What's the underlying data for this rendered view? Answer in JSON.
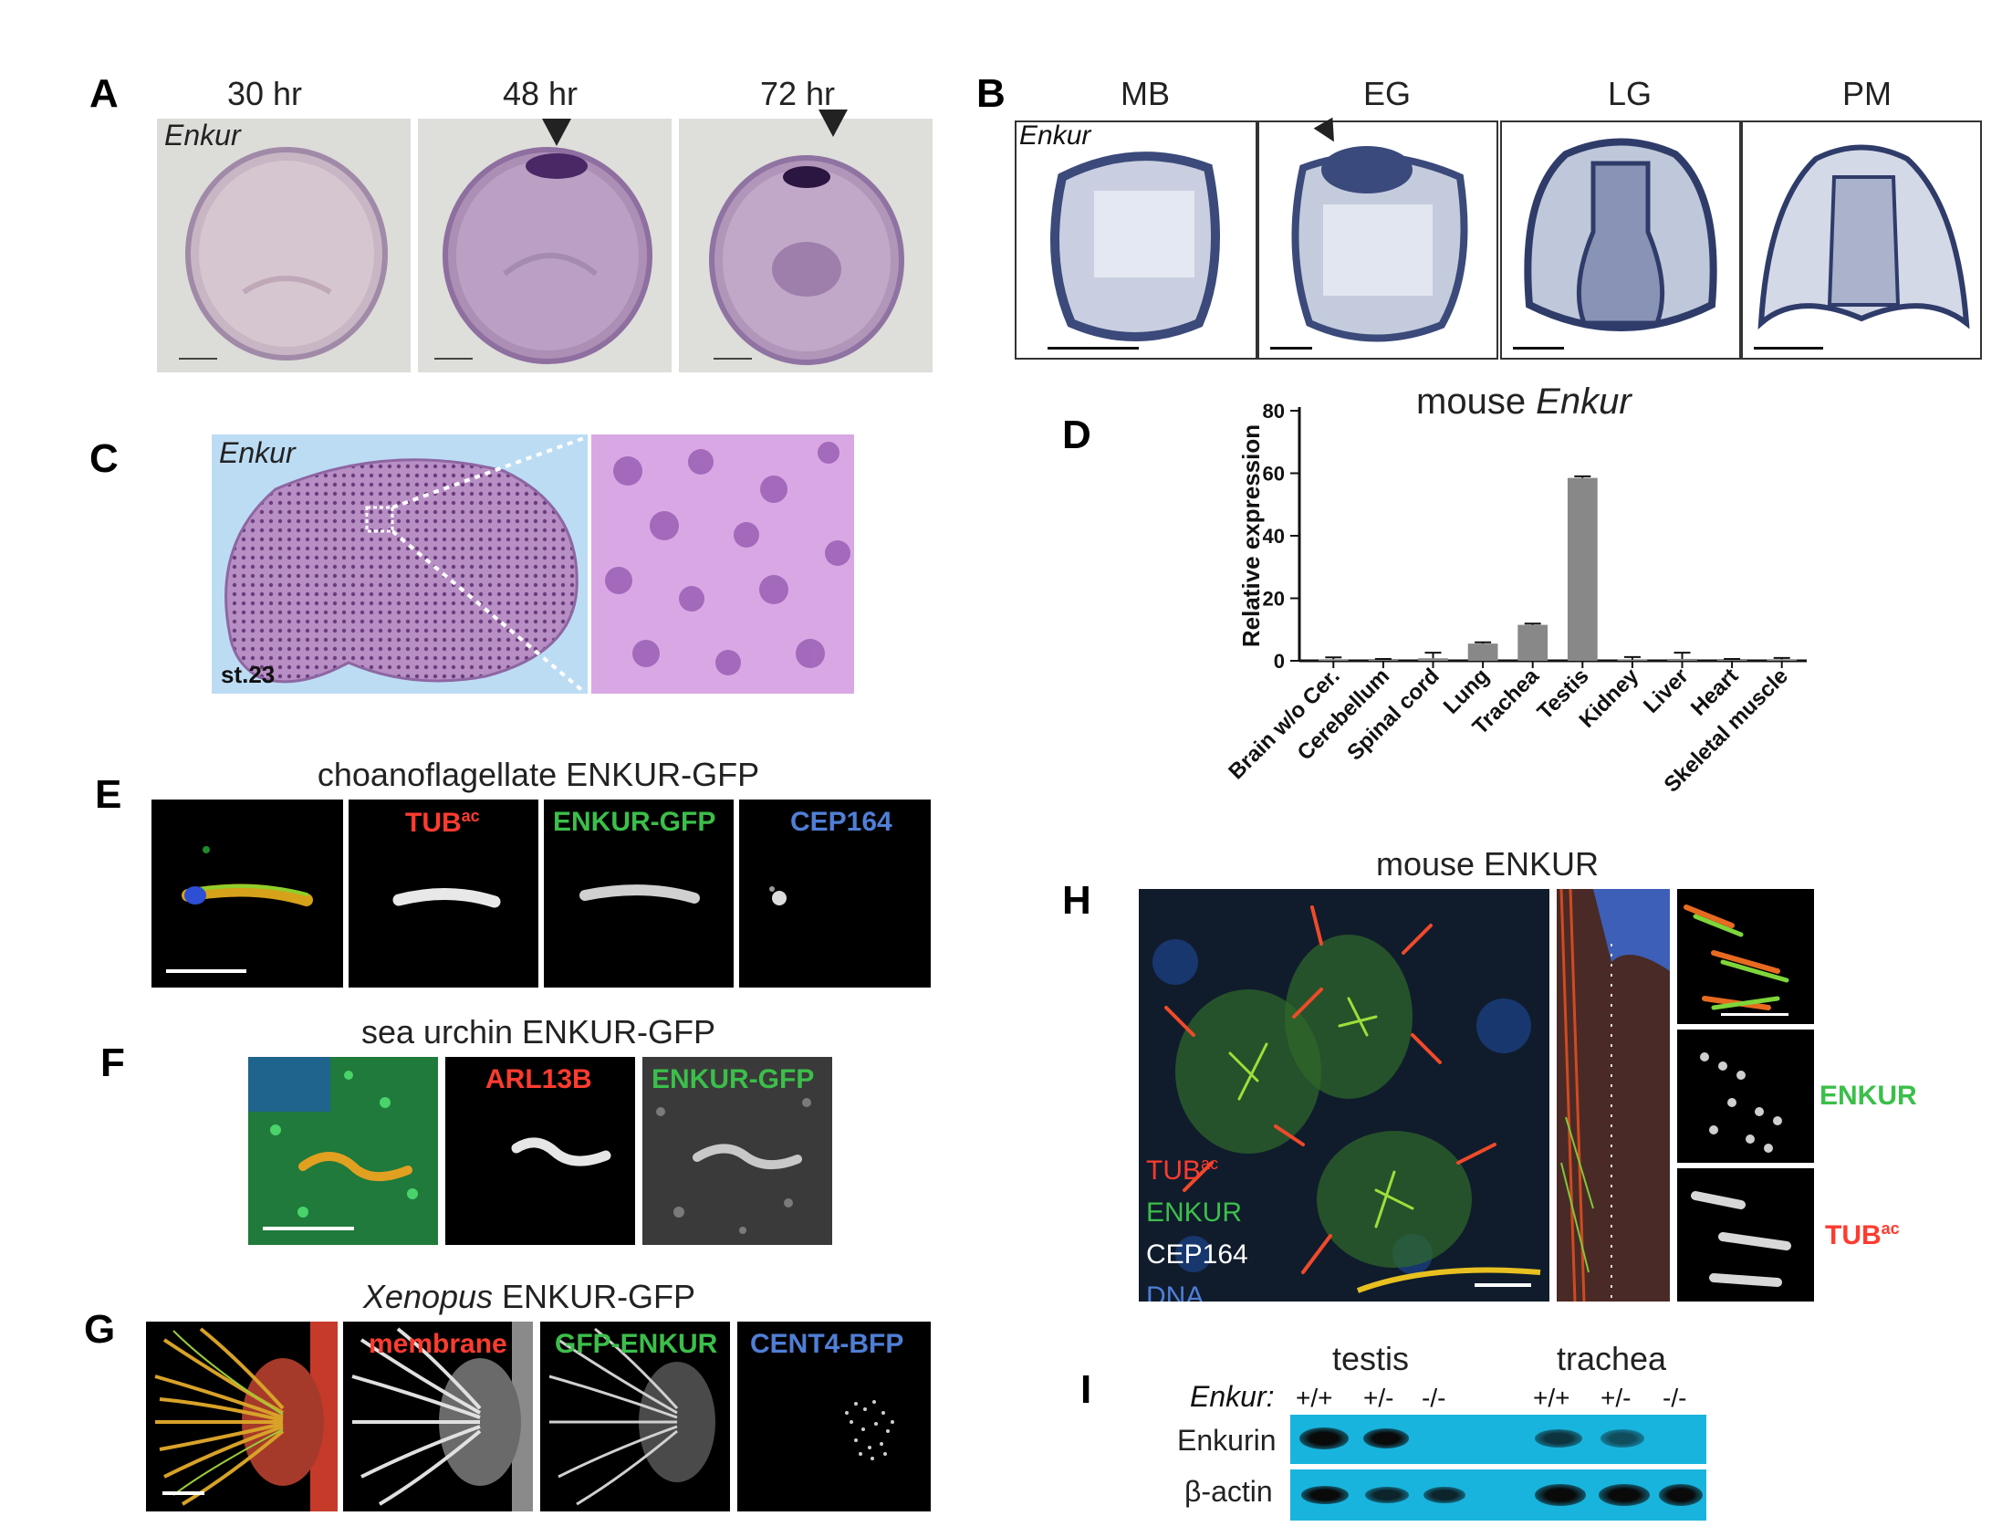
{
  "panels": {
    "A": {
      "label": "A",
      "gene": "Enkur",
      "timepoints": [
        "30 hr",
        "48 hr",
        "72 hr"
      ]
    },
    "B": {
      "label": "B",
      "gene": "Enkur",
      "stages": [
        "MB",
        "EG",
        "LG",
        "PM"
      ]
    },
    "C": {
      "label": "C",
      "gene": "Enkur",
      "stage": "st.23"
    },
    "D": {
      "label": "D",
      "title_prefix": "mouse ",
      "title_gene": "Enkur"
    },
    "E": {
      "label": "E",
      "title": "choanoflagellate ENKUR-GFP",
      "channels": [
        "TUB",
        "ENKUR-GFP",
        "CEP164"
      ],
      "tub_sup": "ac"
    },
    "F": {
      "label": "F",
      "title": "sea urchin ENKUR-GFP",
      "channels": [
        "ARL13B",
        "ENKUR-GFP"
      ]
    },
    "G": {
      "label": "G",
      "title_species": "Xenopus",
      "title_rest": " ENKUR-GFP",
      "channels": [
        "membrane",
        "GFP-ENKUR",
        "CENT4-BFP"
      ]
    },
    "H": {
      "label": "H",
      "title": "mouse ENKUR",
      "legend": [
        "TUB",
        "ENKUR",
        "CEP164",
        "DNA"
      ],
      "tub_sup": "ac",
      "side_labels": [
        "ENKUR",
        "TUB"
      ]
    },
    "I": {
      "label": "I",
      "groups": [
        "testis",
        "trachea"
      ],
      "genotype_label": "Enkur:",
      "genotypes": [
        "+/+",
        "+/-",
        "-/-",
        "+/+",
        "+/-",
        "-/-"
      ],
      "rows": [
        "Enkurin",
        "β-actin"
      ]
    }
  },
  "colors": {
    "red": "#ff3b2f",
    "green": "#3bbf4a",
    "blue": "#4f7fd6",
    "blot": "#19b4dd"
  },
  "chart_data": {
    "type": "bar",
    "title": "mouse Enkur",
    "ylabel": "Relative expression",
    "xlabel": "",
    "ylim": [
      0,
      80
    ],
    "yticks": [
      0,
      20,
      40,
      60,
      80
    ],
    "categories": [
      "Brain w/o Cer.",
      "Cerebellum",
      "Spinal cord",
      "Lung",
      "Trachea",
      "Testis",
      "Kidney",
      "Liver",
      "Heart",
      "Skeletal muscle"
    ],
    "values": [
      0.5,
      0.3,
      0.8,
      5.5,
      11.5,
      58.5,
      0.4,
      0.6,
      0.3,
      0.5
    ],
    "errors": [
      0.6,
      0.3,
      1.8,
      0.4,
      0.4,
      0.5,
      0.8,
      2.0,
      0.3,
      0.4
    ],
    "bar_color": "#888888"
  }
}
